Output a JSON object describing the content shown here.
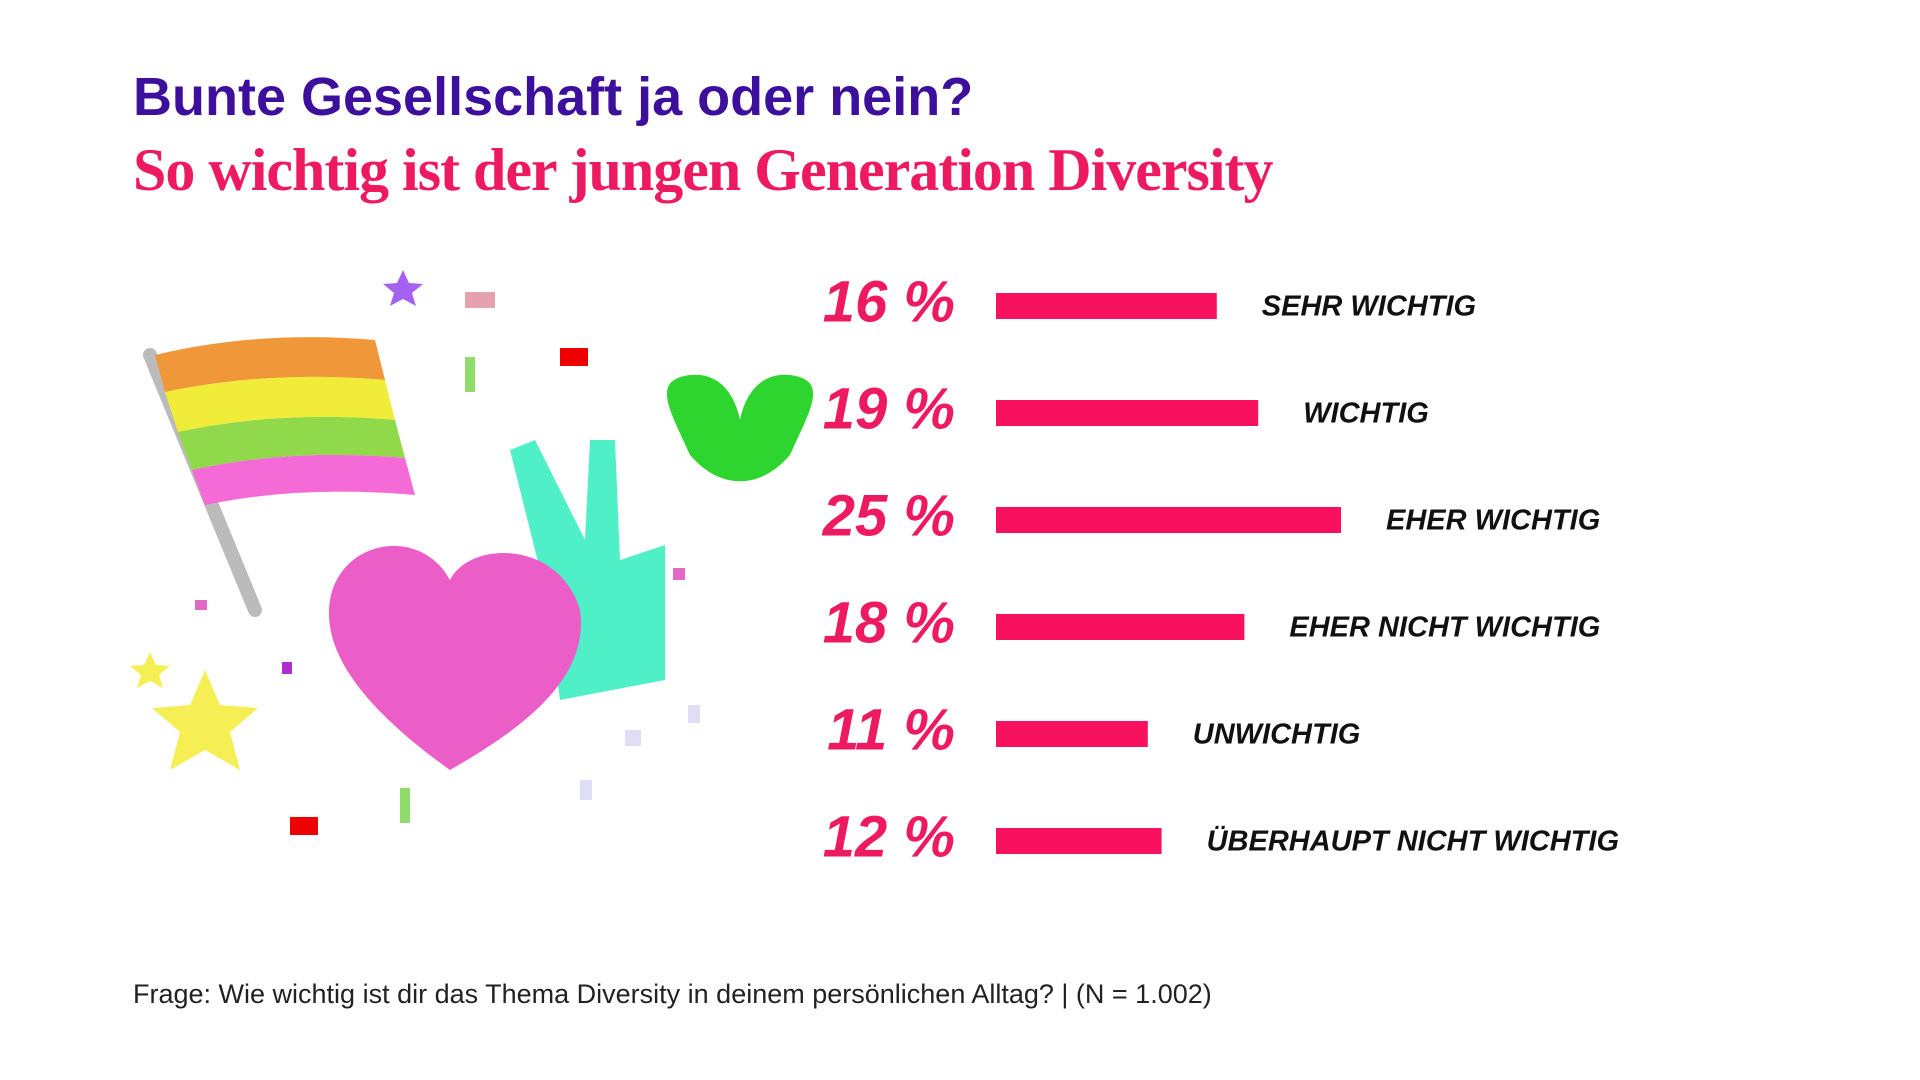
{
  "chart_data": {
    "type": "bar",
    "orientation": "horizontal",
    "title": "Bunte Gesellschaft ja oder nein?",
    "subtitle": "So wichtig ist der jungen Generation Diversity",
    "categories": [
      "SEHR WICHTIG",
      "WICHTIG",
      "EHER WICHTIG",
      "EHER NICHT WICHTIG",
      "UNWICHTIG",
      "ÜBERHAUPT NICHT WICHTIG"
    ],
    "values": [
      16,
      19,
      25,
      18,
      11,
      12
    ],
    "value_labels": [
      "16 %",
      "19 %",
      "25 %",
      "18 %",
      "11 %",
      "12 %"
    ],
    "color": "#f8115f",
    "footnote": "Frage: Wie wichtig ist dir das Thema Diversity in deinem persönlichen Alltag? | (N = 1.002)"
  }
}
